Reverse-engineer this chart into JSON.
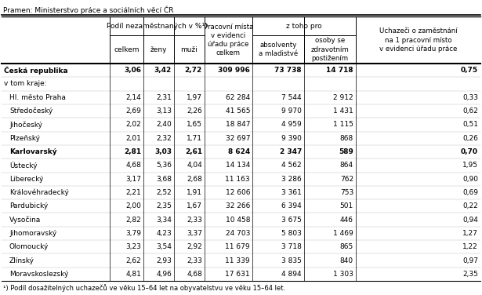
{
  "source": "Pramen: Ministerstvo práce a sociálních věcí ČR",
  "footnote": "¹) Podíl dosažitelných uchazečů ve věku 15–64 let na obyvatelstvu ve věku 15–64 let.",
  "rows": [
    {
      "label": "Česká republika",
      "bold": true,
      "indent": false,
      "values": [
        "3,06",
        "3,42",
        "2,72",
        "309 996",
        "73 738",
        "14 718",
        "0,75"
      ]
    },
    {
      "label": "v tom kraje:",
      "bold": false,
      "indent": false,
      "values": [
        "",
        "",
        "",
        "",
        "",
        "",
        ""
      ]
    },
    {
      "label": "Hl. město Praha",
      "bold": false,
      "indent": true,
      "values": [
        "2,14",
        "2,31",
        "1,97",
        "62 284",
        "7 544",
        "2 912",
        "0,33"
      ]
    },
    {
      "label": "Středočeský",
      "bold": false,
      "indent": true,
      "values": [
        "2,69",
        "3,13",
        "2,26",
        "41 565",
        "9 970",
        "1 431",
        "0,62"
      ]
    },
    {
      "label": "Jihočeský",
      "bold": false,
      "indent": true,
      "values": [
        "2,02",
        "2,40",
        "1,65",
        "18 847",
        "4 959",
        "1 115",
        "0,51"
      ]
    },
    {
      "label": "Plzeňský",
      "bold": false,
      "indent": true,
      "values": [
        "2,01",
        "2,32",
        "1,71",
        "32 697",
        "9 390",
        "868",
        "0,26"
      ]
    },
    {
      "label": "Karlovarský",
      "bold": true,
      "indent": true,
      "values": [
        "2,81",
        "3,03",
        "2,61",
        "8 624",
        "2 347",
        "589",
        "0,70"
      ]
    },
    {
      "label": "Ústecký",
      "bold": false,
      "indent": true,
      "values": [
        "4,68",
        "5,36",
        "4,04",
        "14 134",
        "4 562",
        "864",
        "1,95"
      ]
    },
    {
      "label": "Liberecký",
      "bold": false,
      "indent": true,
      "values": [
        "3,17",
        "3,68",
        "2,68",
        "11 163",
        "3 286",
        "762",
        "0,90"
      ]
    },
    {
      "label": "Královéhradecký",
      "bold": false,
      "indent": true,
      "values": [
        "2,21",
        "2,52",
        "1,91",
        "12 606",
        "3 361",
        "753",
        "0,69"
      ]
    },
    {
      "label": "Pardubický",
      "bold": false,
      "indent": true,
      "values": [
        "2,00",
        "2,35",
        "1,67",
        "32 266",
        "6 394",
        "501",
        "0,22"
      ]
    },
    {
      "label": "Vysočina",
      "bold": false,
      "indent": true,
      "values": [
        "2,82",
        "3,34",
        "2,33",
        "10 458",
        "3 675",
        "446",
        "0,94"
      ]
    },
    {
      "label": "Jihomoravský",
      "bold": false,
      "indent": true,
      "values": [
        "3,79",
        "4,23",
        "3,37",
        "24 703",
        "5 803",
        "1 469",
        "1,27"
      ]
    },
    {
      "label": "Olomoucký",
      "bold": false,
      "indent": true,
      "values": [
        "3,23",
        "3,54",
        "2,92",
        "11 679",
        "3 718",
        "865",
        "1,22"
      ]
    },
    {
      "label": "Zlínský",
      "bold": false,
      "indent": true,
      "values": [
        "2,62",
        "2,93",
        "2,33",
        "11 339",
        "3 835",
        "840",
        "0,97"
      ]
    },
    {
      "label": "Moravskoslezský",
      "bold": false,
      "indent": true,
      "values": [
        "4,81",
        "4,96",
        "4,68",
        "17 631",
        "4 894",
        "1 303",
        "2,35"
      ]
    }
  ],
  "figsize": [
    6.15,
    3.76
  ],
  "dpi": 100
}
